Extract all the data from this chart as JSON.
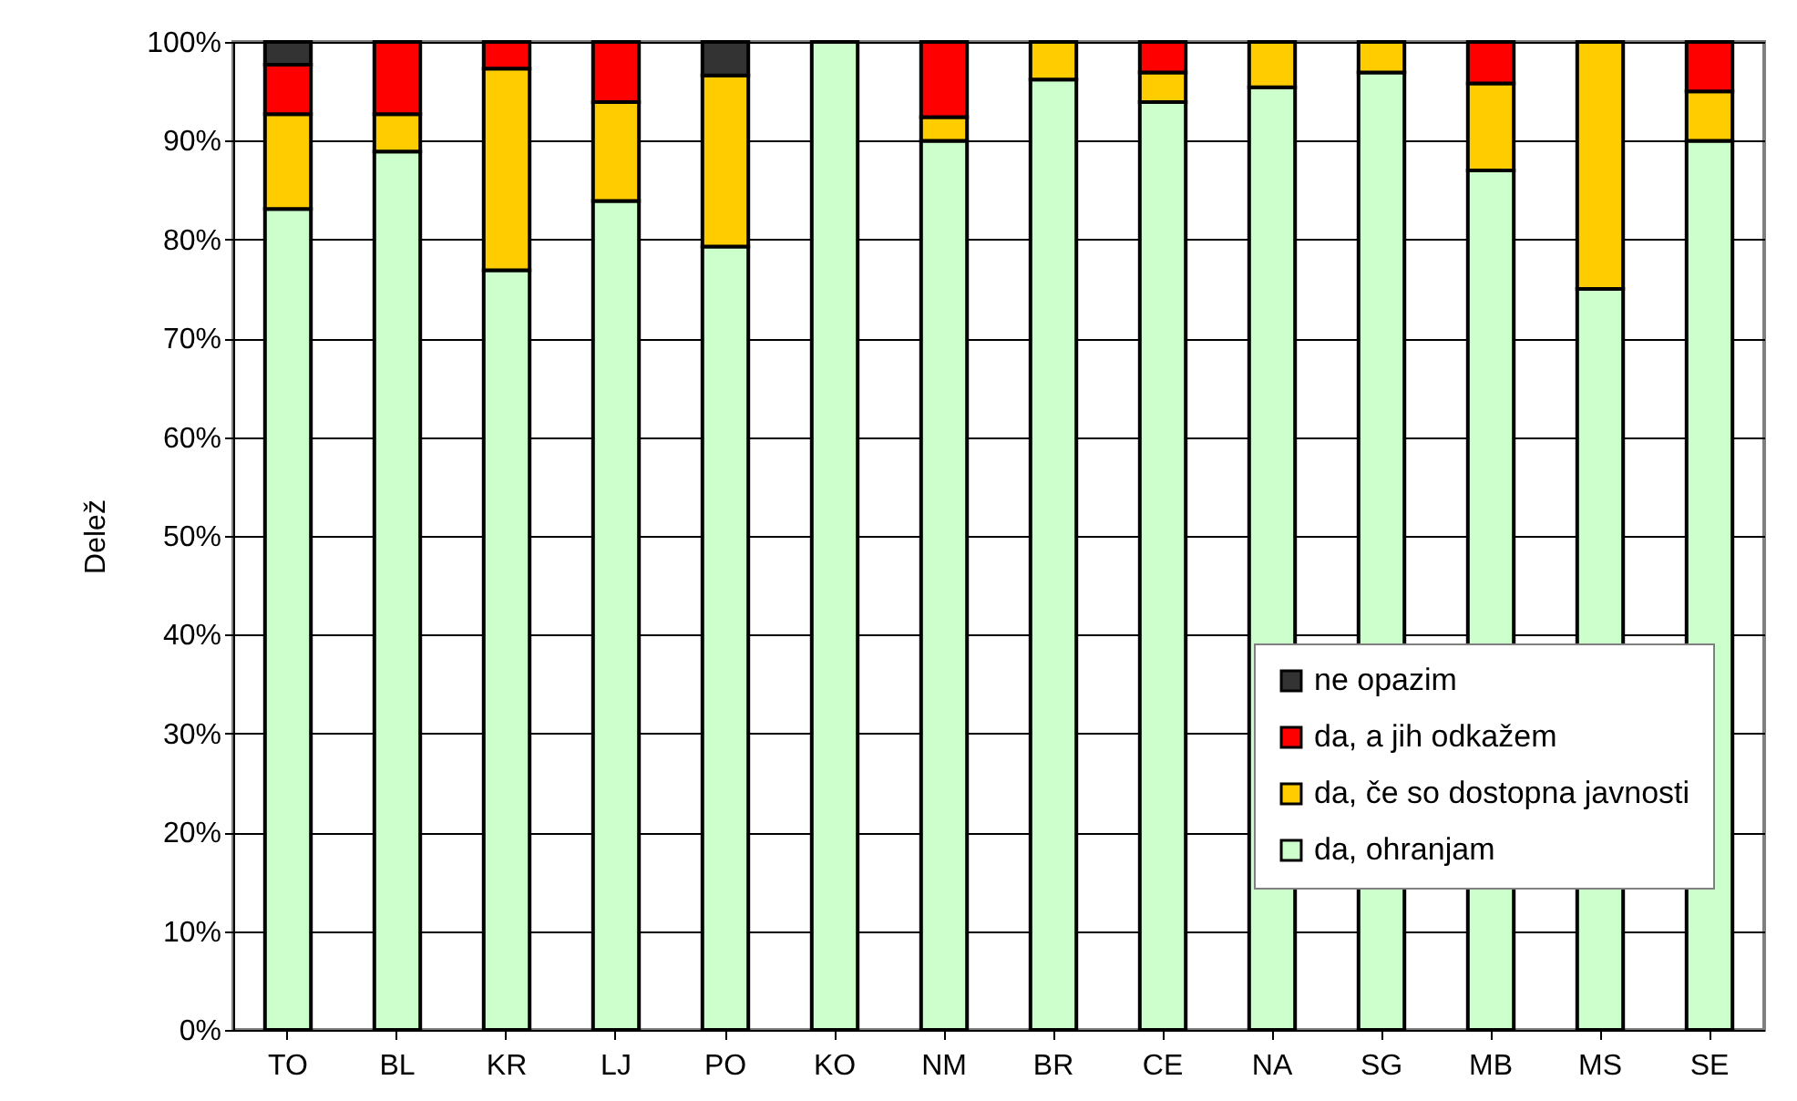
{
  "chart_data": {
    "type": "bar",
    "stacked": true,
    "ylabel": "Delež",
    "categories": [
      "TO",
      "BL",
      "KR",
      "LJ",
      "PO",
      "KO",
      "NM",
      "BR",
      "CE",
      "NA",
      "SG",
      "MB",
      "MS",
      "SE"
    ],
    "series": [
      {
        "name": "da, ohranjam",
        "color": "#ccffcc",
        "values": [
          83.1,
          88.9,
          76.9,
          83.9,
          79.3,
          100,
          90.0,
          96.2,
          93.9,
          95.4,
          96.9,
          87.0,
          75.0,
          90.0
        ]
      },
      {
        "name": "da, če so dostopna javnosti",
        "color": "#ffcc00",
        "values": [
          9.6,
          3.8,
          20.4,
          10.0,
          17.3,
          0,
          2.4,
          3.8,
          3.0,
          4.6,
          3.1,
          8.8,
          25.0,
          5.0
        ]
      },
      {
        "name": "da, a jih odkažem",
        "color": "#ff0000",
        "values": [
          5.0,
          7.3,
          2.7,
          6.1,
          0,
          0,
          7.6,
          0,
          3.1,
          0,
          0,
          4.2,
          0,
          5.0
        ]
      },
      {
        "name": "ne opazim",
        "color": "#333333",
        "values": [
          2.3,
          0,
          0,
          0,
          3.4,
          0,
          0,
          0,
          0,
          0,
          0,
          0,
          0,
          0
        ]
      }
    ],
    "ylim": [
      0,
      100
    ],
    "yticks": [
      {
        "value": 0,
        "label": "0%"
      },
      {
        "value": 10,
        "label": "10%"
      },
      {
        "value": 20,
        "label": "20%"
      },
      {
        "value": 30,
        "label": "30%"
      },
      {
        "value": 40,
        "label": "40%"
      },
      {
        "value": 50,
        "label": "50%"
      },
      {
        "value": 60,
        "label": "60%"
      },
      {
        "value": 70,
        "label": "70%"
      },
      {
        "value": 80,
        "label": "80%"
      },
      {
        "value": 90,
        "label": "90%"
      },
      {
        "value": 100,
        "label": "100%"
      }
    ],
    "grid": "y",
    "legend": "bottom right"
  }
}
